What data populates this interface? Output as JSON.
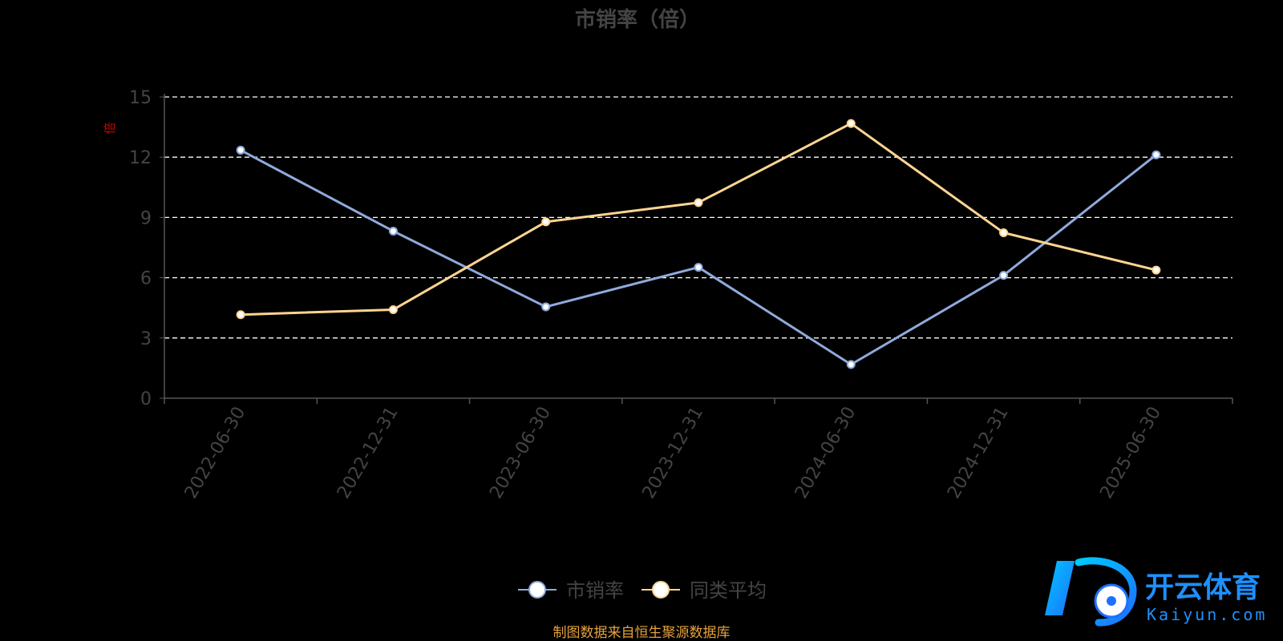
{
  "chart_data": {
    "type": "line",
    "title": "市销率（倍）",
    "ylabel": "倍",
    "categories": [
      "2022-06-30",
      "2022-12-31",
      "2023-06-30",
      "2023-12-31",
      "2024-06-30",
      "2024-12-31",
      "2025-06-30"
    ],
    "y_ticks": [
      "0",
      "3",
      "6",
      "9",
      "12",
      "15"
    ],
    "ylim": [
      0,
      15
    ],
    "grid": true,
    "legend_position": "bottom-center",
    "series": [
      {
        "name": "市销率",
        "values": [
          12.35,
          8.32,
          4.55,
          6.52,
          1.68,
          6.12,
          12.12
        ],
        "color": "#8faadc"
      },
      {
        "name": "同类平均",
        "values": [
          4.16,
          4.41,
          8.78,
          9.74,
          13.68,
          8.24,
          6.38
        ],
        "color": "#ffd591"
      }
    ]
  },
  "source": "制图数据来自恒生聚源数据库",
  "watermark": {
    "name_cn": "开云体育",
    "name_en": "Kaiyun.com",
    "colors": [
      "#1e90ff",
      "#00bfff"
    ]
  },
  "colors": {
    "background": "#000000",
    "axis": "#555555",
    "grid": "#ffffff",
    "title": "#444444",
    "tick": "#444444",
    "ylabel": "#cc0000",
    "source": "#e6a23c",
    "legend_text": "#444444"
  }
}
